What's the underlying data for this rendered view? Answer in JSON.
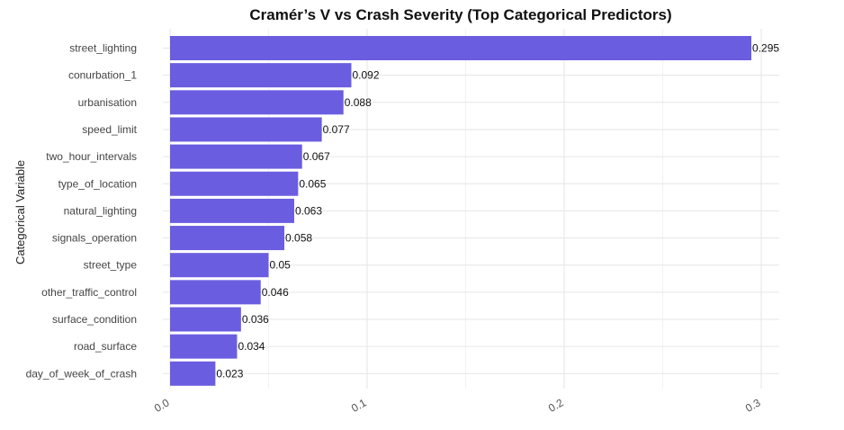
{
  "chart_data": {
    "type": "bar",
    "orientation": "horizontal",
    "title": "Cramér’s V vs Crash Severity (Top Categorical Predictors)",
    "xlabel": "",
    "ylabel": "Categorical Variable",
    "xlim": [
      0,
      0.3
    ],
    "x_ticks": [
      0.0,
      0.1,
      0.2,
      0.3
    ],
    "x_tick_labels": [
      "0.0",
      "0.1",
      "0.2",
      "0.3"
    ],
    "grid": true,
    "bar_color": "#6b5de0",
    "categories": [
      "street_lighting",
      "conurbation_1",
      "urbanisation",
      "speed_limit",
      "two_hour_intervals",
      "type_of_location",
      "natural_lighting",
      "signals_operation",
      "street_type",
      "other_traffic_control",
      "surface_condition",
      "road_surface",
      "day_of_week_of_crash"
    ],
    "values": [
      0.295,
      0.092,
      0.088,
      0.077,
      0.067,
      0.065,
      0.063,
      0.058,
      0.05,
      0.046,
      0.036,
      0.034,
      0.023
    ],
    "value_labels": [
      "0.295",
      "0.092",
      "0.088",
      "0.077",
      "0.067",
      "0.065",
      "0.063",
      "0.058",
      "0.05",
      "0.046",
      "0.036",
      "0.034",
      "0.023"
    ]
  }
}
